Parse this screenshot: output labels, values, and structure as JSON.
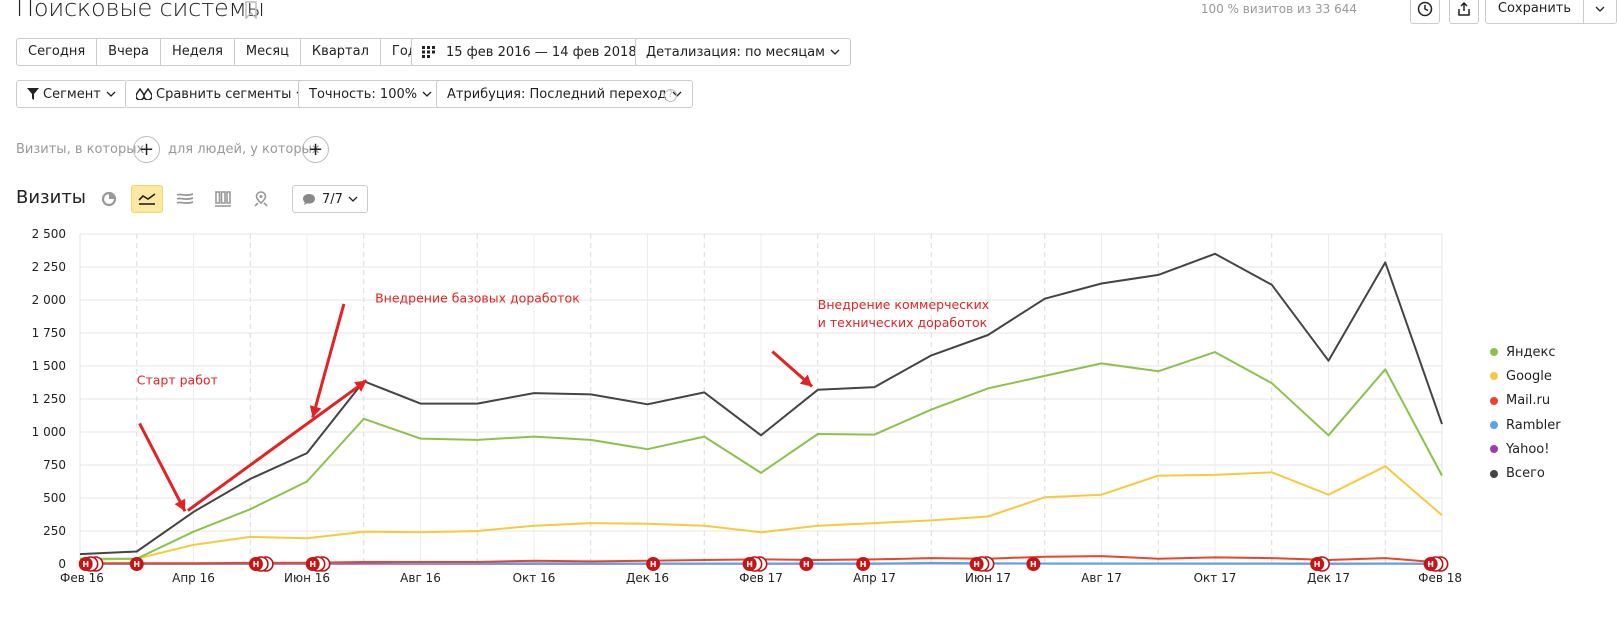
{
  "header": {
    "title": "Поисковые системы",
    "visits_info": "100 % визитов из 33 644",
    "save_label": "Сохранить"
  },
  "period_buttons": [
    "Сегодня",
    "Вчера",
    "Неделя",
    "Месяц",
    "Квартал",
    "Год"
  ],
  "date_range": "15 фев 2016 — 14 фев 2018",
  "detail": "Детализация: по месяцам",
  "filters": {
    "segment": "Сегмент",
    "compare": "Сравнить сегменты",
    "accuracy": "Точность: 100%",
    "attribution": "Атрибуция: Последний переход",
    "help": "?"
  },
  "conditions": {
    "visits_label": "Визиты, в которых",
    "people_label": "для людей, у которых"
  },
  "chart_section": {
    "title": "Визиты",
    "notes": "7/7"
  },
  "colors": {
    "yandex": "#8bc34a",
    "google": "#f7ca3e",
    "mailru": "#e8452c",
    "rambler": "#5aa5e6",
    "yahoo": "#9c3ab5",
    "total": "#444444",
    "annotation": "#e52222"
  },
  "chart_data": {
    "type": "line",
    "ylim": [
      0,
      2500
    ],
    "yticks": [
      "0",
      "250",
      "500",
      "750",
      "1 000",
      "1 250",
      "1 500",
      "1 750",
      "2 000",
      "2 250",
      "2 500"
    ],
    "ytick_values": [
      0,
      250,
      500,
      750,
      1000,
      1250,
      1500,
      1750,
      2000,
      2250,
      2500
    ],
    "x_labels": [
      "Фев 16",
      "Апр 16",
      "Июн 16",
      "Авг 16",
      "Окт 16",
      "Дек 16",
      "Фев 17",
      "Апр 17",
      "Июн 17",
      "Авг 17",
      "Окт 17",
      "Дек 17",
      "Фев 18"
    ],
    "x_label_months": [
      0,
      2,
      4,
      6,
      8,
      10,
      12,
      14,
      16,
      18,
      20,
      22,
      24
    ],
    "months": 25,
    "legend_position": "right",
    "series": [
      {
        "name": "Яндекс",
        "color_key": "yandex",
        "values": [
          40,
          40,
          245,
          415,
          625,
          1100,
          950,
          940,
          965,
          940,
          870,
          965,
          690,
          985,
          980,
          1170,
          1330,
          1425,
          1520,
          1460,
          1605,
          1370,
          975,
          1475,
          670
        ]
      },
      {
        "name": "Google",
        "color_key": "google",
        "values": [
          30,
          40,
          145,
          205,
          195,
          245,
          240,
          250,
          290,
          310,
          305,
          290,
          240,
          290,
          310,
          330,
          360,
          505,
          525,
          670,
          675,
          695,
          525,
          740,
          370
        ]
      },
      {
        "name": "Mail.ru",
        "color_key": "mailru",
        "values": [
          5,
          5,
          5,
          8,
          10,
          15,
          15,
          15,
          25,
          20,
          25,
          30,
          35,
          30,
          35,
          45,
          40,
          55,
          60,
          40,
          50,
          45,
          30,
          45,
          10
        ]
      },
      {
        "name": "Rambler",
        "color_key": "rambler",
        "values": [
          0,
          0,
          2,
          3,
          5,
          12,
          6,
          5,
          5,
          5,
          4,
          4,
          3,
          4,
          4,
          8,
          6,
          4,
          4,
          4,
          3,
          3,
          2,
          3,
          1
        ]
      },
      {
        "name": "Yahoo!",
        "color_key": "yahoo",
        "values": [
          0,
          0,
          1,
          1,
          2,
          3,
          2,
          2,
          2,
          2,
          2,
          2,
          2,
          2,
          2,
          6,
          4,
          3,
          3,
          3,
          3,
          3,
          2,
          3,
          1
        ]
      },
      {
        "name": "Всего",
        "color_key": "total",
        "values": [
          75,
          95,
          395,
          645,
          840,
          1385,
          1215,
          1215,
          1295,
          1285,
          1210,
          1300,
          975,
          1320,
          1340,
          1580,
          1735,
          2010,
          2125,
          2190,
          2350,
          2115,
          1540,
          2285,
          1060
        ]
      }
    ],
    "annotations": [
      {
        "text": "Старт работ",
        "month": 1.0,
        "value": 1360,
        "lines": [
          "Старт работ"
        ]
      },
      {
        "text": "Внедрение базовых доработок",
        "month": 5.2,
        "value": 1980,
        "lines": [
          "Внедрение базовых доработок"
        ]
      },
      {
        "text": "Внедрение коммерческих и технических доработок",
        "month": 13.0,
        "value": 1930,
        "lines": [
          "Внедрение коммерческих",
          "и технических доработок"
        ]
      }
    ],
    "note_markers": [
      {
        "month": 0.1,
        "count": 3
      },
      {
        "month": 1.0,
        "count": 1
      },
      {
        "month": 3.1,
        "count": 3
      },
      {
        "month": 4.1,
        "count": 3
      },
      {
        "month": 10.1,
        "count": 1
      },
      {
        "month": 11.8,
        "count": 3
      },
      {
        "month": 12.8,
        "count": 1
      },
      {
        "month": 13.8,
        "count": 1
      },
      {
        "month": 15.8,
        "count": 3
      },
      {
        "month": 16.8,
        "count": 1
      },
      {
        "month": 21.8,
        "count": 2
      },
      {
        "month": 23.8,
        "count": 3
      }
    ]
  }
}
